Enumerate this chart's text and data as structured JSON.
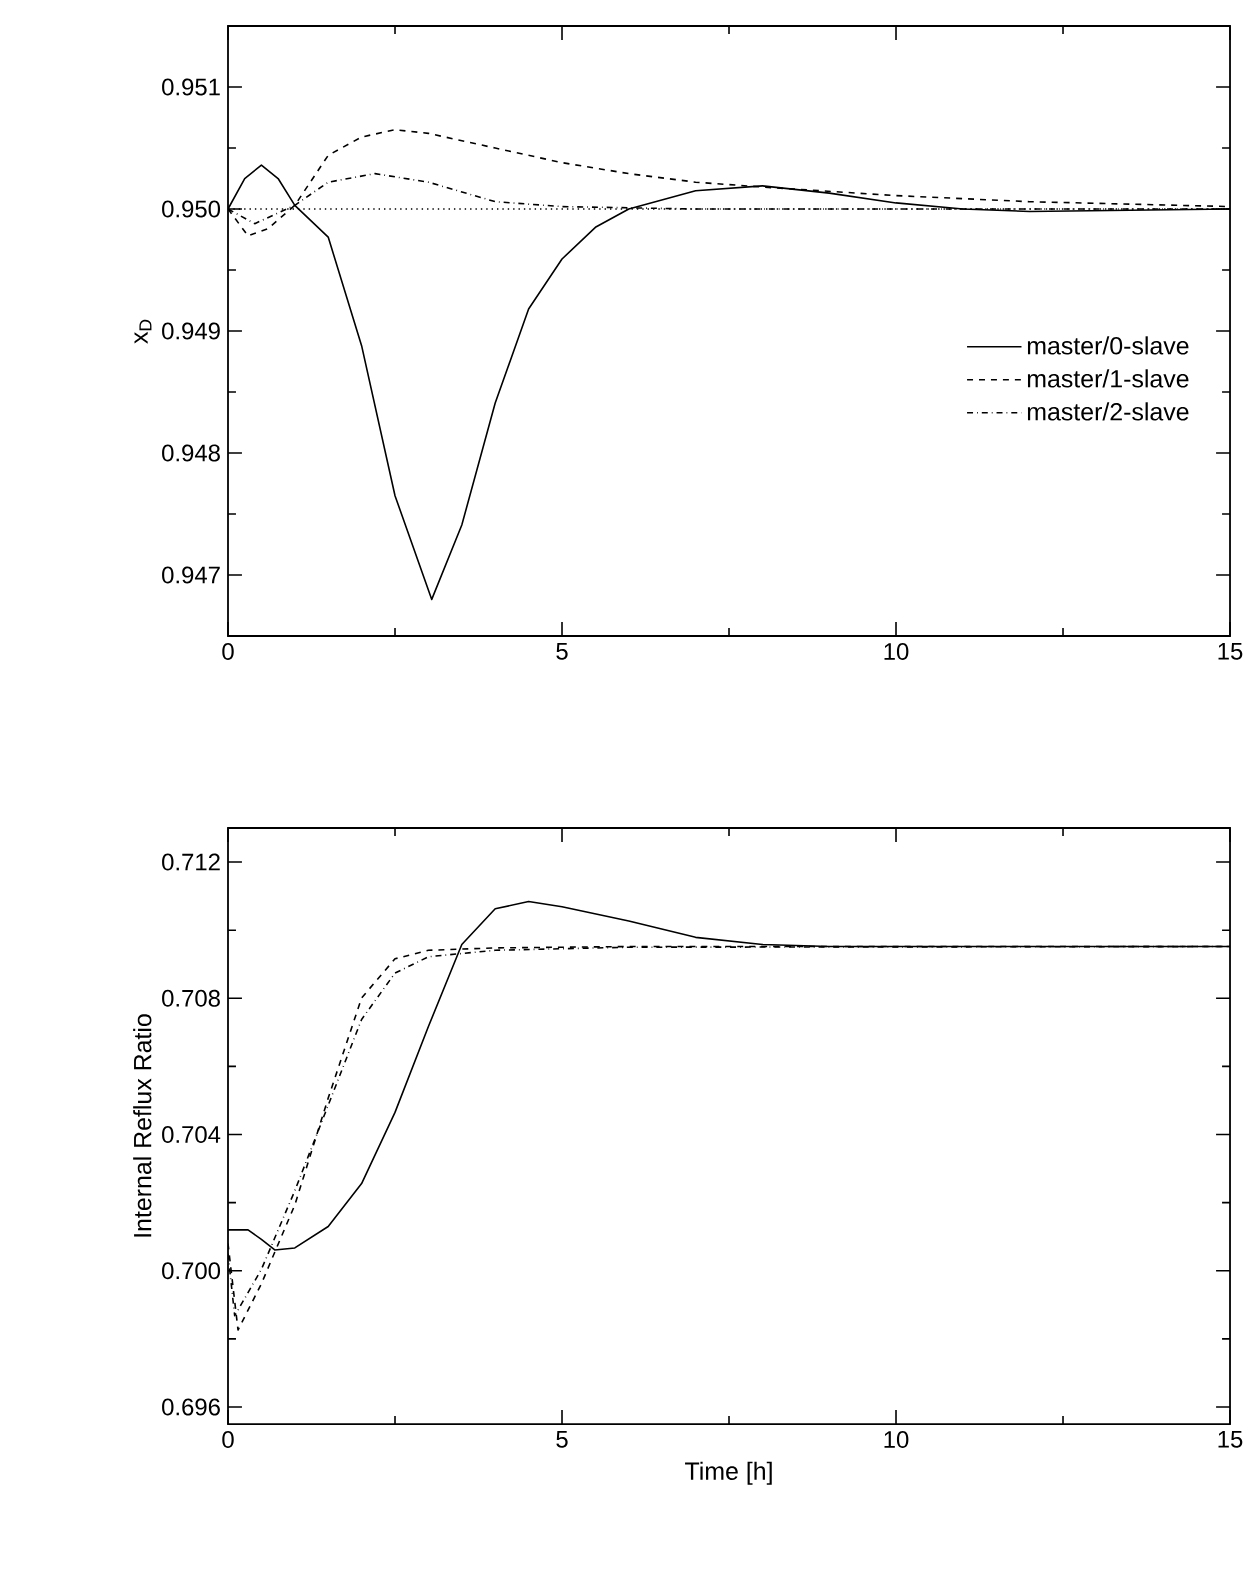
{
  "chart_data": [
    {
      "type": "line",
      "ylabel": "x$_{D}$",
      "xlim": [
        0,
        15
      ],
      "xticks": [
        0,
        5,
        10,
        15
      ],
      "ylim": [
        0.9465,
        0.9515
      ],
      "yticks": [
        {
          "value": 0.947,
          "label": "0.947"
        },
        {
          "value": 0.948,
          "label": "0.948"
        },
        {
          "value": 0.949,
          "label": "0.949"
        },
        {
          "value": 0.95,
          "label": "0.950"
        },
        {
          "value": 0.951,
          "label": "0.951"
        }
      ],
      "grid": false,
      "legend": "right",
      "marker": "none",
      "ref_lines": [
        {
          "axis": "y",
          "value": 0.95,
          "line_style": "dotted",
          "color": "#000000"
        }
      ],
      "series": [
        {
          "name": "master/0-slave",
          "color": "#000000",
          "line_style": "solid",
          "x": [
            0,
            0.25,
            0.5,
            0.75,
            1,
            1.5,
            2,
            2.5,
            3.05,
            3.5,
            4,
            4.5,
            5,
            5.5,
            6,
            7,
            8,
            9,
            10,
            11,
            12,
            15
          ],
          "values": [
            0.95,
            0.95025,
            0.95036,
            0.95025,
            0.95003,
            0.94977,
            0.94888,
            0.94765,
            0.9468,
            0.94741,
            0.94841,
            0.94918,
            0.94959,
            0.94985,
            0.95,
            0.95015,
            0.95019,
            0.95013,
            0.95005,
            0.95,
            0.94998,
            0.95
          ]
        },
        {
          "name": "master/1-slave",
          "color": "#000000",
          "line_style": "dashed",
          "x": [
            0,
            0.3,
            0.6,
            1,
            1.5,
            2,
            2.5,
            3,
            4,
            5,
            6,
            7,
            8,
            10,
            12,
            15
          ],
          "values": [
            0.95,
            0.94978,
            0.94984,
            0.95003,
            0.95044,
            0.95059,
            0.95065,
            0.95062,
            0.9505,
            0.95038,
            0.95029,
            0.95022,
            0.95018,
            0.95011,
            0.95006,
            0.95002
          ]
        },
        {
          "name": "master/2-slave",
          "color": "#000000",
          "line_style": "dashdot",
          "x": [
            0,
            0.4,
            1,
            1.5,
            2.2,
            3,
            4,
            5,
            7,
            15
          ],
          "values": [
            0.95,
            0.94988,
            0.95003,
            0.95022,
            0.95029,
            0.95022,
            0.95006,
            0.95002,
            0.95,
            0.95
          ]
        }
      ]
    },
    {
      "type": "line",
      "xlabel": "Time [h]",
      "ylabel": "Internal Reflux Ratio",
      "xlim": [
        0,
        15
      ],
      "xticks": [
        0,
        5,
        10,
        15
      ],
      "ylim": [
        0.6955,
        0.713
      ],
      "yticks": [
        {
          "value": 0.696,
          "label": "0.696"
        },
        {
          "value": 0.7,
          "label": "0.700"
        },
        {
          "value": 0.704,
          "label": "0.704"
        },
        {
          "value": 0.708,
          "label": "0.708"
        },
        {
          "value": 0.712,
          "label": "0.712"
        }
      ],
      "grid": false,
      "legend": false,
      "marker": "none",
      "series": [
        {
          "color": "#000000",
          "line_style": "solid",
          "x": [
            0,
            0.3,
            0.5,
            0.7,
            1,
            1.5,
            2,
            2.5,
            3,
            3.5,
            4,
            4.5,
            5,
            6,
            7,
            8,
            9,
            15
          ],
          "values": [
            0.7012,
            0.7012,
            0.70092,
            0.70061,
            0.70067,
            0.7013,
            0.70256,
            0.70465,
            0.70717,
            0.70958,
            0.71063,
            0.71084,
            0.71069,
            0.71027,
            0.70979,
            0.70958,
            0.70952,
            0.70952
          ]
        },
        {
          "color": "#000000",
          "line_style": "dashed",
          "x": [
            0,
            0.15,
            0.5,
            1,
            1.5,
            2,
            2.5,
            3,
            4,
            6,
            15
          ],
          "values": [
            0.7008,
            0.69826,
            0.69962,
            0.70193,
            0.70507,
            0.70801,
            0.70916,
            0.70941,
            0.70948,
            0.70952,
            0.70952
          ]
        },
        {
          "color": "#000000",
          "line_style": "dashdot",
          "x": [
            0,
            0.1,
            0.5,
            1,
            1.5,
            2,
            2.5,
            3,
            4,
            6,
            15
          ],
          "values": [
            0.7005,
            0.69868,
            0.70004,
            0.70235,
            0.70486,
            0.70738,
            0.70874,
            0.70922,
            0.70941,
            0.7095,
            0.70952
          ]
        }
      ]
    }
  ]
}
